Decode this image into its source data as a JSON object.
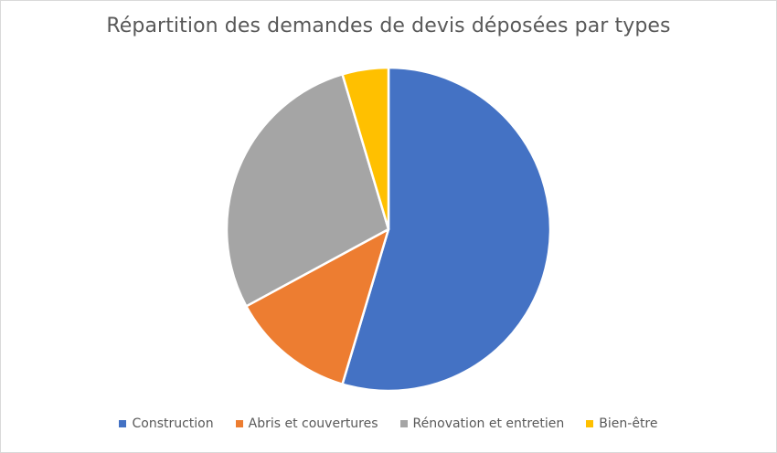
{
  "chart_data": {
    "type": "pie",
    "title": "Répartition des demandes de devis déposées par types",
    "categories": [
      "Construction",
      "Abris et couvertures",
      "Rénovation et entretien",
      "Bien-être"
    ],
    "values": [
      54.6,
      12.5,
      28.3,
      4.6
    ],
    "colors": [
      "#4472c4",
      "#ed7d31",
      "#a5a5a5",
      "#ffc000"
    ],
    "legend_position": "bottom",
    "start_angle": "12 o'clock",
    "direction": "clockwise"
  }
}
